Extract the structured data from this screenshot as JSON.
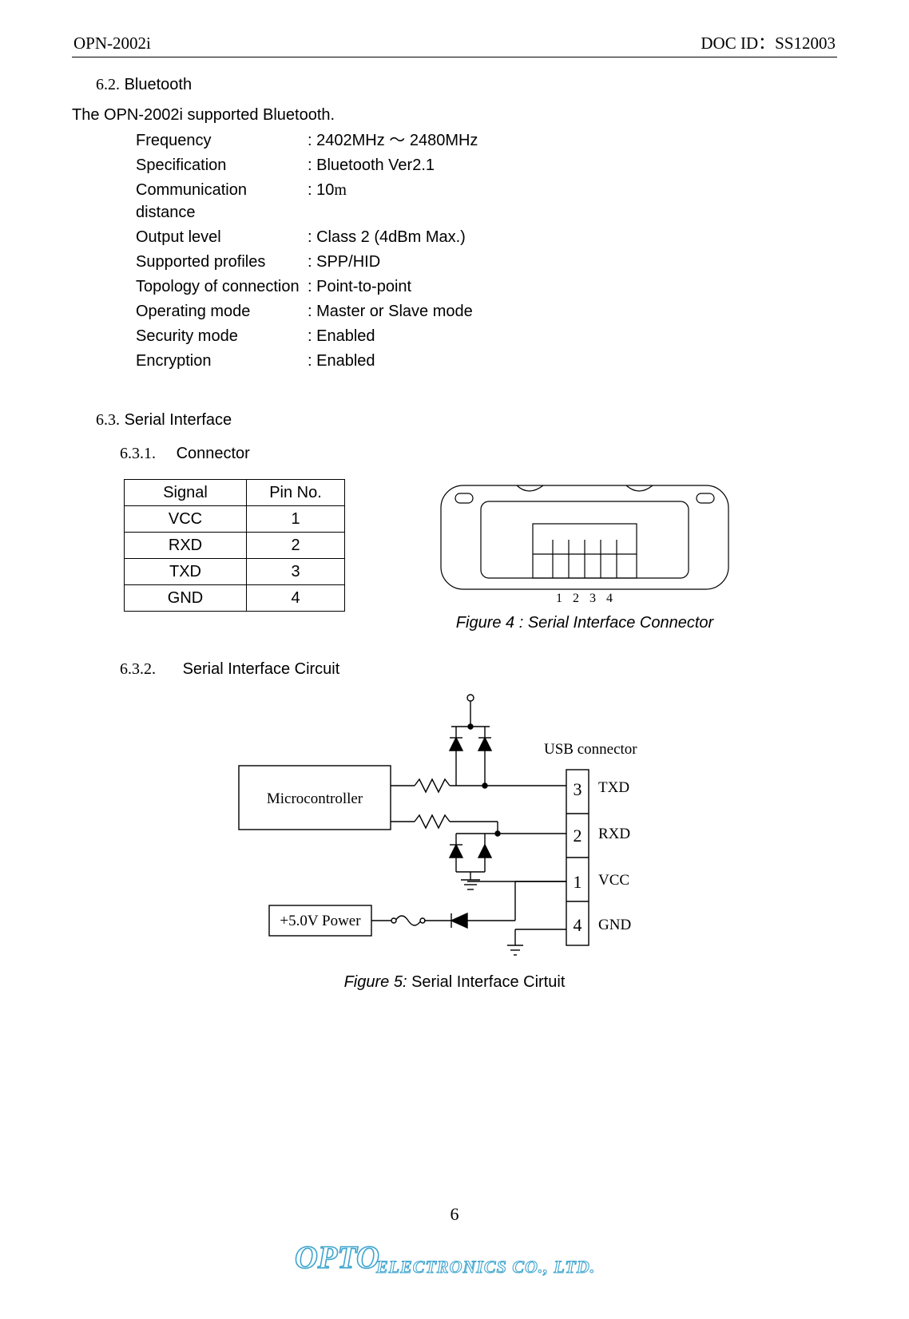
{
  "header": {
    "left": "OPN-2002i",
    "right": "DOC ID：SS12003"
  },
  "sections": {
    "bt": {
      "num": "6.2.",
      "title": "Bluetooth"
    },
    "si": {
      "num": "6.3.",
      "title": "Serial Interface"
    },
    "conn": {
      "num": "6.3.1.",
      "title": "Connector"
    },
    "circ": {
      "num": "6.3.2.",
      "title": "Serial Interface Circuit"
    }
  },
  "intro": "The OPN-2002i supported Bluetooth.",
  "specs": [
    {
      "k": "Frequency",
      "v": ": 2402MHz ～ 2480MHz"
    },
    {
      "k": "Specification",
      "v": ": Bluetooth Ver2.1"
    },
    {
      "k": "Communication distance",
      "v": ": 10",
      "unit": "m"
    },
    {
      "k": "Output level",
      "v": ": Class 2 (4dBm Max.)"
    },
    {
      "k": "Supported profiles",
      "v": ": SPP/HID"
    },
    {
      "k": "Topology of connection",
      "v": ": Point-to-point"
    },
    {
      "k": "Operating mode",
      "v": ": Master or Slave mode"
    },
    {
      "k": "Security mode",
      "v": ": Enabled"
    },
    {
      "k": "Encryption",
      "v": ": Enabled"
    }
  ],
  "table": {
    "head": [
      "Signal",
      "Pin No."
    ],
    "rows": [
      [
        "VCC",
        "1"
      ],
      [
        "RXD",
        "2"
      ],
      [
        "TXD",
        "3"
      ],
      [
        "GND",
        "4"
      ]
    ]
  },
  "fig4": {
    "caption": "Figure 4 : Serial Interface Connector",
    "pins": [
      "1",
      "2",
      "3",
      "4"
    ]
  },
  "fig5": {
    "caption_lead": "Figure 5:",
    "caption_body": " Serial Interface Cirtuit",
    "labels": {
      "usb": "USB connector",
      "mcu": "Microcontroller",
      "pwr": "+5.0V Power",
      "p1": "1",
      "p2": "2",
      "p3": "3",
      "p4": "4",
      "txd": "TXD",
      "rxd": "RXD",
      "vcc": "VCC",
      "gnd": "GND"
    }
  },
  "page_num": "6",
  "logo": {
    "main": "OPTO",
    "sub": "ELECTRONICS CO., LTD.",
    "color": "#3fa5cf"
  }
}
